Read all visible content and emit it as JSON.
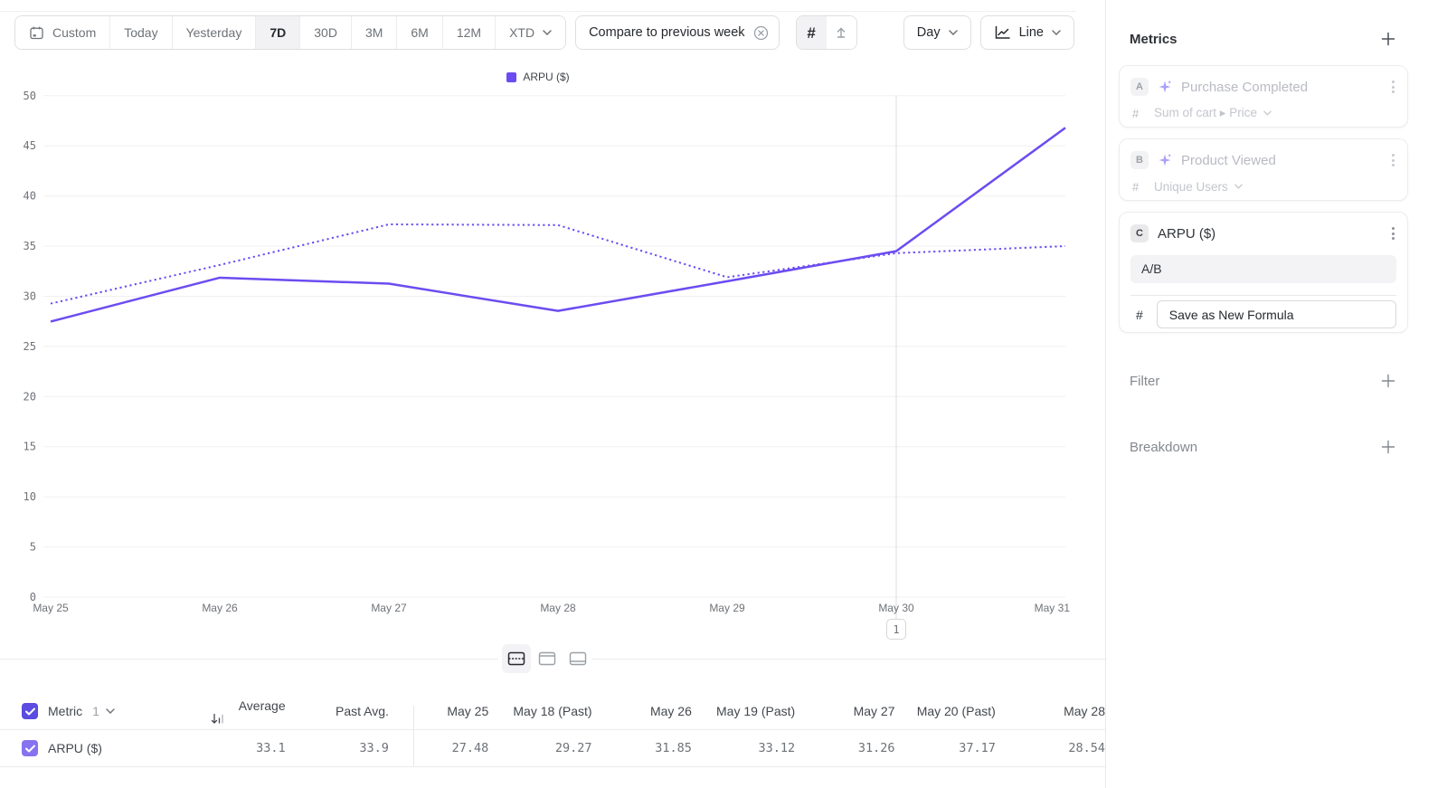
{
  "accent": "#6C4CF1",
  "toolbar": {
    "ranges": [
      "Custom",
      "Today",
      "Yesterday",
      "7D",
      "30D",
      "3M",
      "6M",
      "12M",
      "XTD"
    ],
    "selected_range": "7D",
    "compare_chip": "Compare to previous week",
    "granularity": "Day",
    "chart_type": "Line"
  },
  "chart_data": {
    "type": "line",
    "title": "",
    "legend": [
      "ARPU ($)"
    ],
    "categories": [
      "May 25",
      "May 26",
      "May 27",
      "May 28",
      "May 29",
      "May 30",
      "May 31"
    ],
    "series": [
      {
        "name": "ARPU ($) (previous week)",
        "style": "dotted",
        "values": [
          29.27,
          33.12,
          37.17,
          37.1,
          31.9,
          34.3,
          35.0
        ]
      },
      {
        "name": "ARPU ($)",
        "style": "solid",
        "values": [
          27.48,
          31.85,
          31.26,
          28.54,
          31.5,
          34.5,
          46.8
        ]
      }
    ],
    "ylim": [
      0,
      50
    ],
    "ytick_step": 5,
    "grid": true,
    "legend_position": "top-center",
    "line_color": "#6C4CF1",
    "annotation": {
      "x_index": 5,
      "label": "1"
    }
  },
  "layout_toggles": {
    "selected_index": 0
  },
  "table": {
    "metric_header": {
      "label": "Metric",
      "count": "1"
    },
    "columns": [
      "Average",
      "Past Avg.",
      "May 25",
      "May 18 (Past)",
      "May 26",
      "May 19 (Past)",
      "May 27",
      "May 20 (Past)",
      "May 28"
    ],
    "rows": [
      {
        "label": "ARPU ($)",
        "values": [
          "33.1",
          "33.9",
          "27.48",
          "29.27",
          "31.85",
          "33.12",
          "31.26",
          "37.17",
          "28.54"
        ]
      }
    ],
    "checkbox_header_color": "#5b4be0",
    "checkbox_row_color": "#8673f0"
  },
  "metrics_panel": {
    "title": "Metrics",
    "items": [
      {
        "badge": "A",
        "name": "Purchase Completed",
        "measure_prefix": "#",
        "measure": "Sum of cart ▸ Price",
        "disabled": true
      },
      {
        "badge": "B",
        "name": "Product Viewed",
        "measure_prefix": "#",
        "measure": "Unique Users",
        "disabled": true
      },
      {
        "badge": "C",
        "name": "ARPU ($)",
        "formula": "A/B",
        "measure_prefix": "#",
        "save_button": "Save as New Formula",
        "disabled": false
      }
    ],
    "filter_title": "Filter",
    "breakdown_title": "Breakdown"
  }
}
